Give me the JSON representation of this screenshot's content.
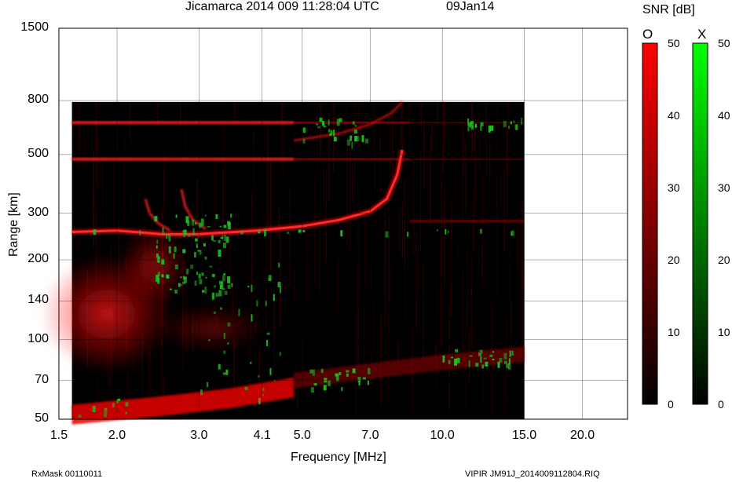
{
  "chart_data": {
    "type": "heatmap",
    "title": "Jicamarca 2014 009 11:28:04 UTC",
    "date_label": "09Jan14",
    "xlabel": "Frequency [MHz]",
    "ylabel": "Range [km]",
    "x_scale": "log",
    "y_scale": "log",
    "xlim": [
      1.5,
      25.0
    ],
    "ylim": [
      50,
      1500
    ],
    "x_ticks": [
      1.5,
      2.0,
      3.0,
      4.1,
      5.0,
      7.0,
      10.0,
      15.0,
      20.0
    ],
    "x_tick_labels": [
      "1.5",
      "2.0",
      "3.0",
      "4.1",
      "5.0",
      "7.0",
      "10.0",
      "15.0",
      "20.0"
    ],
    "y_ticks": [
      50,
      70,
      100,
      140,
      200,
      300,
      500,
      800,
      1500
    ],
    "y_tick_labels": [
      "50",
      "70",
      "100",
      "140",
      "200",
      "300",
      "500",
      "800",
      "1500"
    ],
    "grid": true,
    "data_extent": {
      "x": [
        1.6,
        15.0
      ],
      "y": [
        50,
        790
      ]
    },
    "o_trace": [
      {
        "x": 1.6,
        "y": 255
      },
      {
        "x": 2.0,
        "y": 258
      },
      {
        "x": 2.5,
        "y": 250
      },
      {
        "x": 3.0,
        "y": 250
      },
      {
        "x": 4.0,
        "y": 258
      },
      {
        "x": 5.0,
        "y": 268
      },
      {
        "x": 6.0,
        "y": 283
      },
      {
        "x": 7.0,
        "y": 305
      },
      {
        "x": 7.6,
        "y": 340
      },
      {
        "x": 8.0,
        "y": 420
      },
      {
        "x": 8.2,
        "y": 520
      }
    ],
    "multihop_bands_km": [
      660,
      480
    ],
    "colorbars": [
      {
        "name": "O",
        "color": "#ff0000",
        "range": [
          0,
          50
        ],
        "ticks": [
          "0",
          "10",
          "20",
          "30",
          "40",
          "50"
        ]
      },
      {
        "name": "X",
        "color": "#00ff00",
        "range": [
          0,
          50
        ],
        "ticks": [
          "0",
          "10",
          "20",
          "30",
          "40",
          "50"
        ]
      }
    ],
    "colorbar_title": "SNR [dB]"
  },
  "footer": {
    "left": "RxMask 00110011",
    "right": "VIPIR  JM91J_2014009112804.RIQ"
  }
}
